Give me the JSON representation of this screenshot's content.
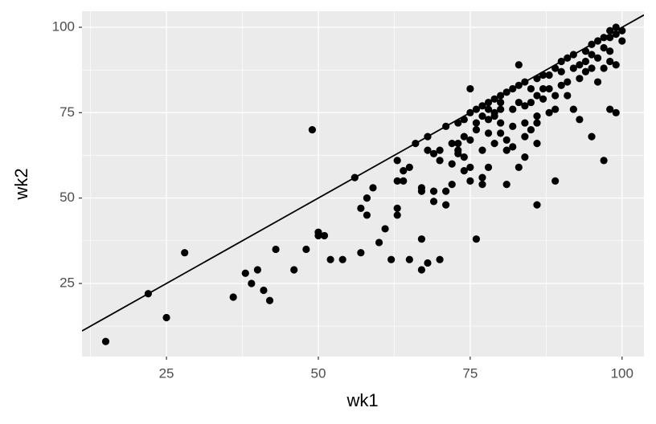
{
  "chart_data": {
    "type": "scatter",
    "x_label": "wk1",
    "y_label": "wk2",
    "x": [
      15,
      22,
      25,
      28,
      36,
      38,
      39,
      40,
      41,
      42,
      43,
      46,
      48,
      49,
      50,
      50,
      51,
      52,
      54,
      56,
      57,
      57,
      58,
      58,
      59,
      60,
      61,
      62,
      63,
      63,
      63,
      63,
      64,
      64,
      65,
      65,
      66,
      67,
      67,
      67,
      67,
      68,
      68,
      68,
      69,
      69,
      69,
      70,
      70,
      70,
      71,
      71,
      71,
      72,
      72,
      72,
      73,
      73,
      73,
      73,
      74,
      74,
      74,
      74,
      75,
      75,
      75,
      75,
      75,
      76,
      76,
      76,
      77,
      77,
      77,
      77,
      78,
      78,
      78,
      78,
      79,
      79,
      79,
      80,
      80,
      80,
      81,
      81,
      81,
      81,
      82,
      82,
      83,
      83,
      83,
      84,
      84,
      84,
      85,
      85,
      86,
      86,
      86,
      86,
      87,
      87,
      88,
      88,
      89,
      89,
      89,
      90,
      90,
      91,
      91,
      92,
      92,
      93,
      93,
      94,
      94,
      95,
      95,
      95,
      96,
      96,
      97,
      97,
      97,
      98,
      98,
      98,
      99,
      99,
      99,
      100,
      100,
      89,
      91,
      93,
      94,
      96,
      98,
      99,
      85,
      83,
      80,
      79,
      78,
      77,
      76,
      82,
      84,
      86,
      87,
      88,
      90,
      92,
      95,
      97,
      98,
      80,
      82,
      84,
      86
    ],
    "values": [
      8,
      22,
      15,
      34,
      21,
      28,
      25,
      29,
      23,
      20,
      35,
      29,
      35,
      70,
      40,
      39,
      39,
      32,
      32,
      56,
      47,
      34,
      50,
      45,
      53,
      37,
      41,
      32,
      61,
      47,
      45,
      55,
      58,
      55,
      32,
      59,
      66,
      53,
      38,
      29,
      52,
      31,
      68,
      64,
      52,
      63,
      49,
      32,
      61,
      64,
      71,
      48,
      52,
      66,
      60,
      54,
      72,
      63,
      66,
      64,
      73,
      68,
      58,
      62,
      82,
      75,
      55,
      67,
      59,
      38,
      76,
      72,
      77,
      54,
      56,
      64,
      78,
      73,
      69,
      59,
      79,
      74,
      66,
      80,
      76,
      72,
      81,
      54,
      67,
      64,
      82,
      71,
      89,
      83,
      59,
      84,
      68,
      62,
      78,
      70,
      48,
      85,
      74,
      66,
      86,
      79,
      82,
      75,
      88,
      55,
      76,
      87,
      83,
      91,
      80,
      92,
      76,
      73,
      85,
      93,
      87,
      95,
      68,
      88,
      96,
      84,
      97,
      61,
      88,
      99,
      76,
      93,
      100,
      75,
      89,
      99,
      96,
      80,
      84,
      89,
      90,
      91,
      97,
      98,
      82,
      78,
      78,
      75,
      76,
      74,
      70,
      76,
      77,
      80,
      82,
      86,
      90,
      88,
      92,
      94,
      90,
      69,
      65,
      72,
      72
    ],
    "color": "#000000",
    "reference_line": {
      "slope": 1,
      "intercept": 0,
      "color": "#000000"
    },
    "xlim": [
      11.1,
      103.6
    ],
    "ylim": [
      3.6,
      104.7
    ],
    "xticks": [
      25,
      50,
      75,
      100
    ],
    "yticks": [
      25,
      50,
      75,
      100
    ],
    "grid": true,
    "panel_color": "#ebebeb"
  }
}
